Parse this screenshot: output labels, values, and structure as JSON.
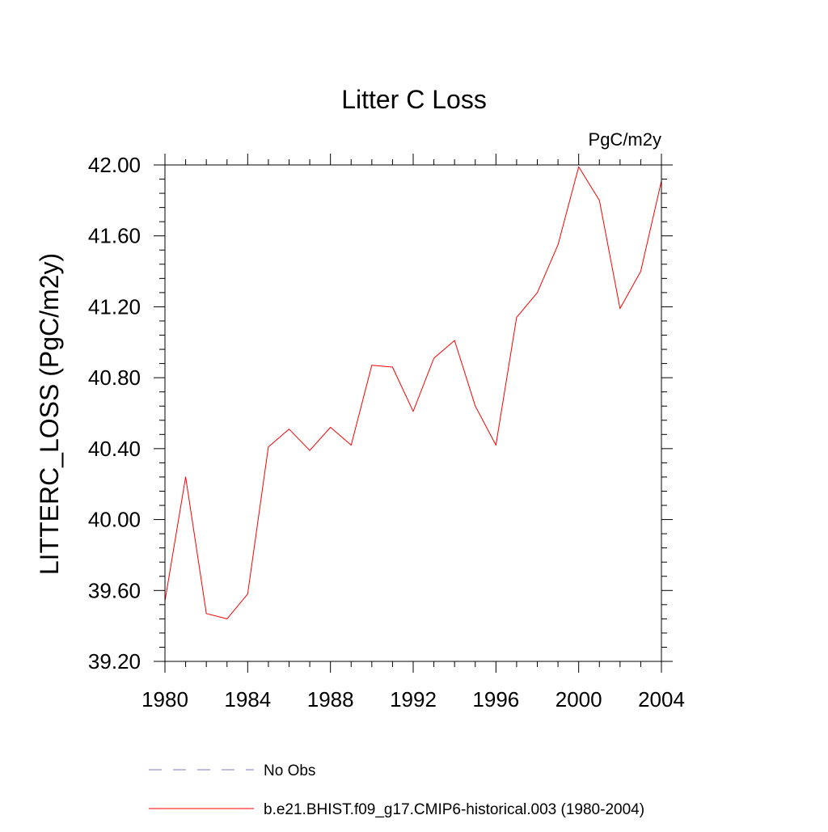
{
  "chart_data": {
    "type": "line",
    "title": "Litter C Loss",
    "units_label": "PgC/m2y",
    "xlabel": "",
    "ylabel": "LITTERC_LOSS  (PgC/m2y)",
    "xlim": [
      1980,
      2004
    ],
    "ylim": [
      39.2,
      42.0
    ],
    "x_ticks": [
      1980,
      1984,
      1988,
      1992,
      1996,
      2000,
      2004
    ],
    "x_tick_labels": [
      "1980",
      "1984",
      "1988",
      "1992",
      "1996",
      "2000",
      "2004"
    ],
    "y_ticks": [
      39.2,
      39.6,
      40.0,
      40.4,
      40.8,
      41.2,
      41.6,
      42.0
    ],
    "y_tick_labels": [
      "39.20",
      "39.60",
      "40.00",
      "40.40",
      "40.80",
      "41.20",
      "41.60",
      "42.00"
    ],
    "x_minor_step": 1,
    "y_minor_step": 0.08,
    "grid": false,
    "series": [
      {
        "name": "b.e21.BHIST.f09_g17.CMIP6-historical.003 (1980-2004)",
        "color": "#ff0000",
        "style": "solid",
        "x": [
          1980,
          1981,
          1982,
          1983,
          1984,
          1985,
          1986,
          1987,
          1988,
          1989,
          1990,
          1991,
          1992,
          1993,
          1994,
          1995,
          1996,
          1997,
          1998,
          1999,
          2000,
          2001,
          2002,
          2003,
          2004
        ],
        "values": [
          39.54,
          40.24,
          39.47,
          39.44,
          39.58,
          40.41,
          40.51,
          40.39,
          40.52,
          40.42,
          40.87,
          40.86,
          40.61,
          40.91,
          41.01,
          40.64,
          40.42,
          41.14,
          41.28,
          41.55,
          41.99,
          41.8,
          41.19,
          41.4,
          41.91
        ]
      }
    ],
    "legend": {
      "placement": "bottom",
      "entries": [
        {
          "label": "No Obs",
          "color": "#7b7bc9",
          "style": "dashed"
        },
        {
          "label": "b.e21.BHIST.f09_g17.CMIP6-historical.003 (1980-2004)",
          "color": "#ff0000",
          "style": "solid"
        }
      ]
    }
  }
}
